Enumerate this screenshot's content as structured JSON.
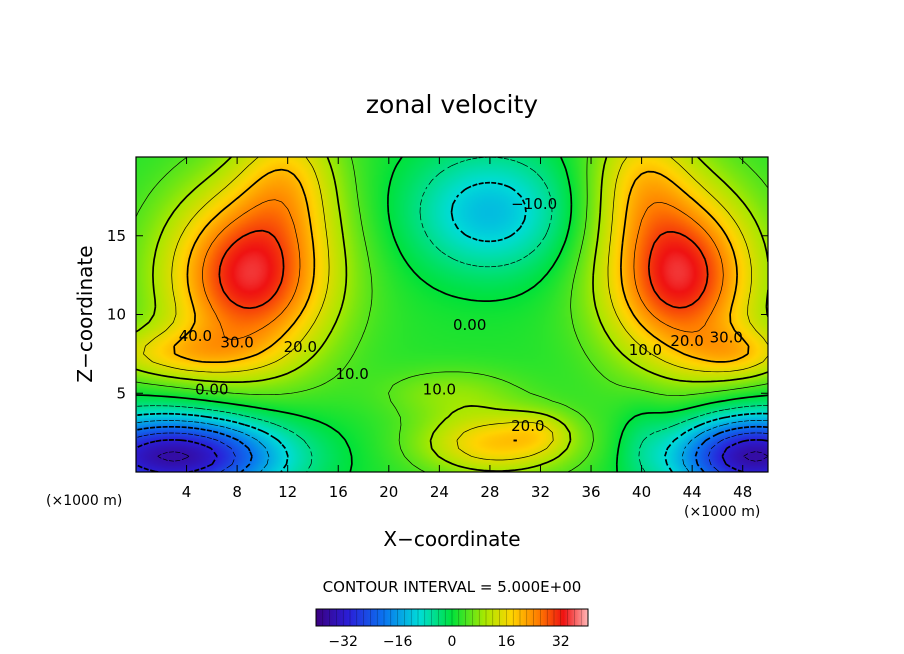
{
  "chart_data": {
    "type": "heatmap",
    "title": "zonal velocity",
    "xlabel": "X−coordinate",
    "ylabel": "Z−coordinate",
    "x_unit_left": "(×1000 m)",
    "x_unit_right": "(×1000 m)",
    "xlim": [
      0,
      50
    ],
    "ylim": [
      0,
      20
    ],
    "x_ticks": [
      4,
      8,
      12,
      16,
      20,
      24,
      28,
      32,
      36,
      40,
      44,
      48
    ],
    "y_ticks": [
      5,
      10,
      15
    ],
    "contour_interval_text": "CONTOUR INTERVAL = 5.000E+00",
    "contour_interval": 5.0,
    "contour_labels": [
      {
        "text": "40.0",
        "x": 4.7,
        "y": 8.6
      },
      {
        "text": "30.0",
        "x": 8.0,
        "y": 8.2
      },
      {
        "text": "20.0",
        "x": 13.0,
        "y": 7.9
      },
      {
        "text": "10.0",
        "x": 17.1,
        "y": 6.2
      },
      {
        "text": "0.00",
        "x": 6.0,
        "y": 5.2
      },
      {
        "text": "10.0",
        "x": 24.0,
        "y": 5.2
      },
      {
        "text": "20.0",
        "x": 31.0,
        "y": 2.9
      },
      {
        "text": "0.00",
        "x": 26.4,
        "y": 9.3
      },
      {
        "text": "−10.0",
        "x": 31.5,
        "y": 17.0
      },
      {
        "text": "10.0",
        "x": 40.3,
        "y": 7.7
      },
      {
        "text": "20.0",
        "x": 43.6,
        "y": 8.3
      },
      {
        "text": "30.0",
        "x": 46.7,
        "y": 8.5
      }
    ],
    "colorbar": {
      "ticks": [
        "−32",
        "−16",
        "0",
        "16",
        "32"
      ],
      "tick_values": [
        -32,
        -16,
        0,
        16,
        32
      ],
      "range": [
        -40,
        40
      ]
    },
    "field_description": "Zonal velocity field; approx. +40 at the upper-left and upper-right shoulders and around z=8, approx. −30 near the bottom corners, −10 to −15 near x=28, z=16, +20 near x=26–32, z=1–3."
  }
}
